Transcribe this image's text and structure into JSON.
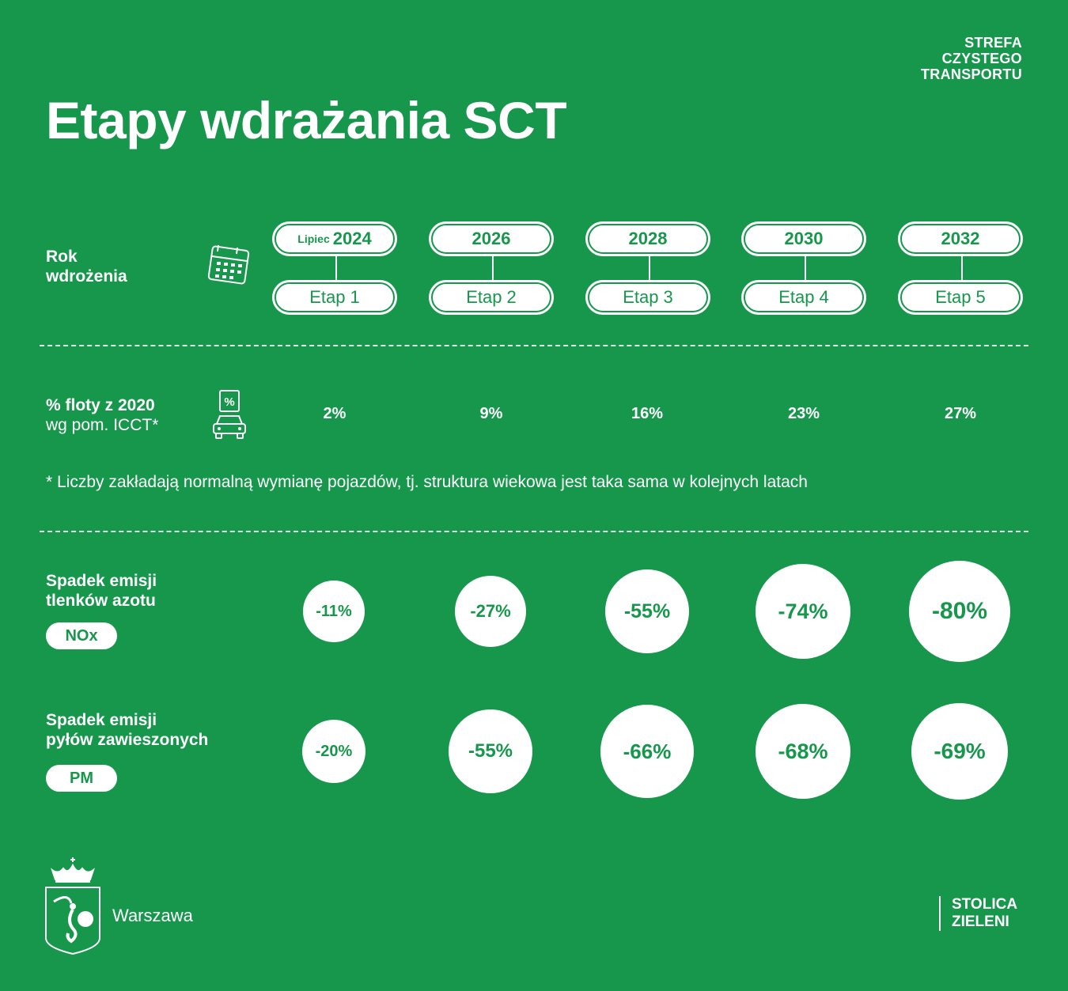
{
  "brand": {
    "line1": "STREFA",
    "line2": "CZYSTEGO",
    "line3": "TRANSPORTU"
  },
  "title": "Etapy wdrażania SCT",
  "year_row": {
    "label_line1": "Rok",
    "label_line2": "wdrożenia",
    "icon": "calendar-icon",
    "stages": [
      {
        "prefix": "Lipiec",
        "year": "2024",
        "stage": "Etap 1"
      },
      {
        "prefix": "",
        "year": "2026",
        "stage": "Etap 2"
      },
      {
        "prefix": "",
        "year": "2028",
        "stage": "Etap 3"
      },
      {
        "prefix": "",
        "year": "2030",
        "stage": "Etap 4"
      },
      {
        "prefix": "",
        "year": "2032",
        "stage": "Etap 5"
      }
    ]
  },
  "fleet_row": {
    "label_bold": "% floty z 2020",
    "label_normal": "wg pom. ICCT*",
    "icon": "car-percent-icon",
    "values": [
      "2%",
      "9%",
      "16%",
      "23%",
      "27%"
    ]
  },
  "footnote": "* Liczby zakładają normalną wymianę pojazdów, tj. struktura wiekowa jest taka sama w kolejnych latach",
  "nox_row": {
    "label_line1": "Spadek emisji",
    "label_line2": "tlenków azotu",
    "tag": "NOx",
    "values": [
      "-11%",
      "-27%",
      "-55%",
      "-74%",
      "-80%"
    ],
    "numeric": [
      -11,
      -27,
      -55,
      -74,
      -80
    ]
  },
  "pm_row": {
    "label_line1": "Spadek emisji",
    "label_line2": "pyłów zawieszonych",
    "tag": "PM",
    "values": [
      "-20%",
      "-55%",
      "-66%",
      "-68%",
      "-69%"
    ],
    "numeric": [
      -20,
      -55,
      -66,
      -68,
      -69
    ]
  },
  "footer": {
    "city": "Warszawa",
    "logo_icon": "warsaw-coat-of-arms-icon",
    "slogan_line1": "STOLICA",
    "slogan_line2": "ZIELENI"
  },
  "colors": {
    "background": "#17974c",
    "foreground": "#ffffff"
  }
}
